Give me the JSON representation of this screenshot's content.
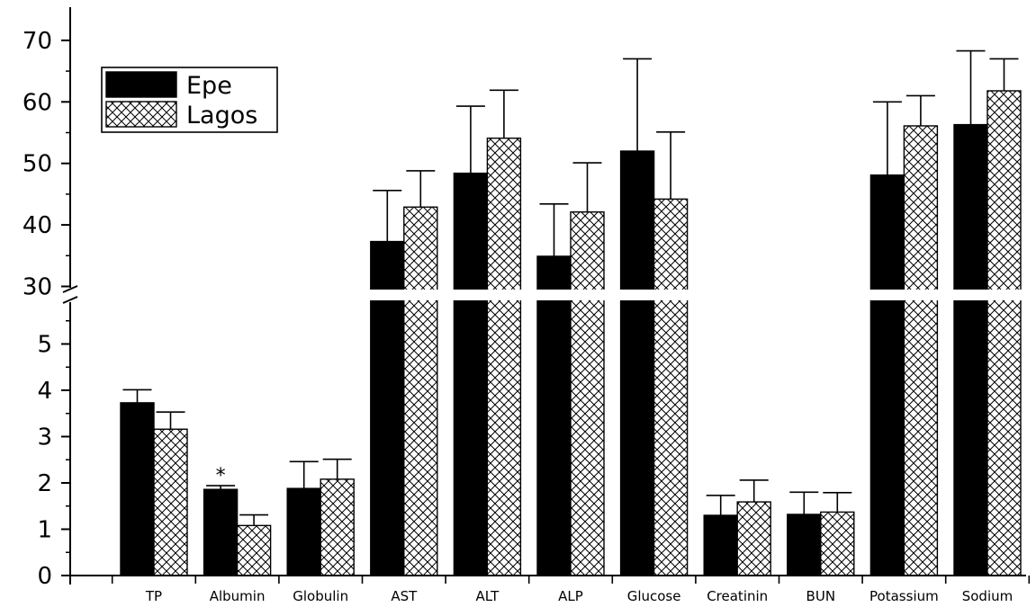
{
  "chart_data": {
    "type": "bar",
    "title": "",
    "xlabel": "",
    "ylabel": "",
    "y_axis_break": {
      "lower": [
        0,
        5.8
      ],
      "upper": [
        30,
        72
      ]
    },
    "lower_ticks": [
      "0",
      "1",
      "2",
      "3",
      "4",
      "5"
    ],
    "upper_ticks": [
      "30",
      "40",
      "50",
      "60",
      "70"
    ],
    "categories": [
      "TP",
      "Albumin",
      "Globulin",
      "AST",
      "ALT",
      "ALP",
      "Glucose",
      "Creatinin",
      "BUN",
      "Potassium",
      "Sodium"
    ],
    "legend": {
      "position": "top-left"
    },
    "series": [
      {
        "name": "Epe",
        "pattern": "solid",
        "color": "#000000",
        "values": [
          3.73,
          1.86,
          1.88,
          37.3,
          48.4,
          34.9,
          52.0,
          1.3,
          1.32,
          48.1,
          56.3
        ],
        "errors": [
          0.28,
          0.08,
          0.58,
          8.3,
          10.9,
          8.5,
          15.0,
          0.43,
          0.48,
          11.9,
          12.0
        ]
      },
      {
        "name": "Lagos",
        "pattern": "crosshatch",
        "color": "#000000",
        "values": [
          3.16,
          1.08,
          2.08,
          42.9,
          54.1,
          42.1,
          44.2,
          1.59,
          1.37,
          56.1,
          61.8
        ],
        "errors": [
          0.37,
          0.23,
          0.43,
          5.9,
          7.8,
          8.0,
          10.9,
          0.47,
          0.42,
          4.9,
          5.2
        ]
      }
    ],
    "annotations": [
      {
        "category": "Albumin",
        "series": "Epe",
        "text": "*"
      }
    ]
  }
}
